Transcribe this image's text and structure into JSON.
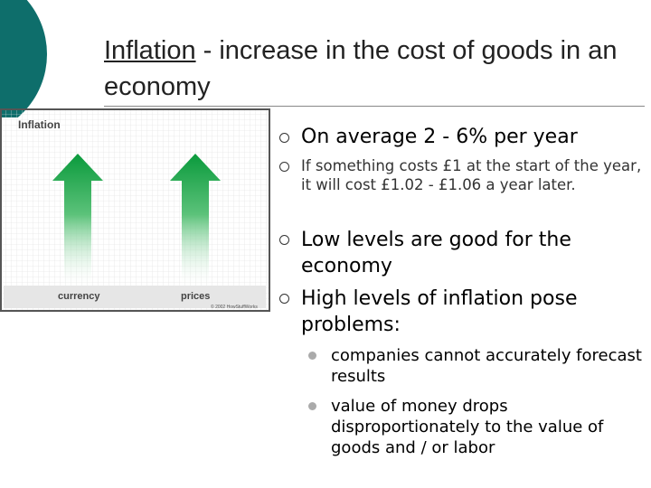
{
  "header": {
    "title_term": "Inflation",
    "title_rest": "- increase in the cost of goods in an economy"
  },
  "image": {
    "title": "Inflation",
    "labels": [
      "currency",
      "prices"
    ],
    "credit": "© 2002 HowStuffWorks"
  },
  "bullets": [
    {
      "text": "On average 2 - 6% per year"
    },
    {
      "text": "If something costs £1 at the start of the year, it will cost £1.02 - £1.06 a year later."
    },
    {
      "text": "Low levels are good for the economy"
    },
    {
      "text": "High levels of inflation pose problems:",
      "sub": [
        "companies cannot accurately forecast results",
        "value of money drops disproportionately to the value of goods and / or labor"
      ]
    }
  ]
}
